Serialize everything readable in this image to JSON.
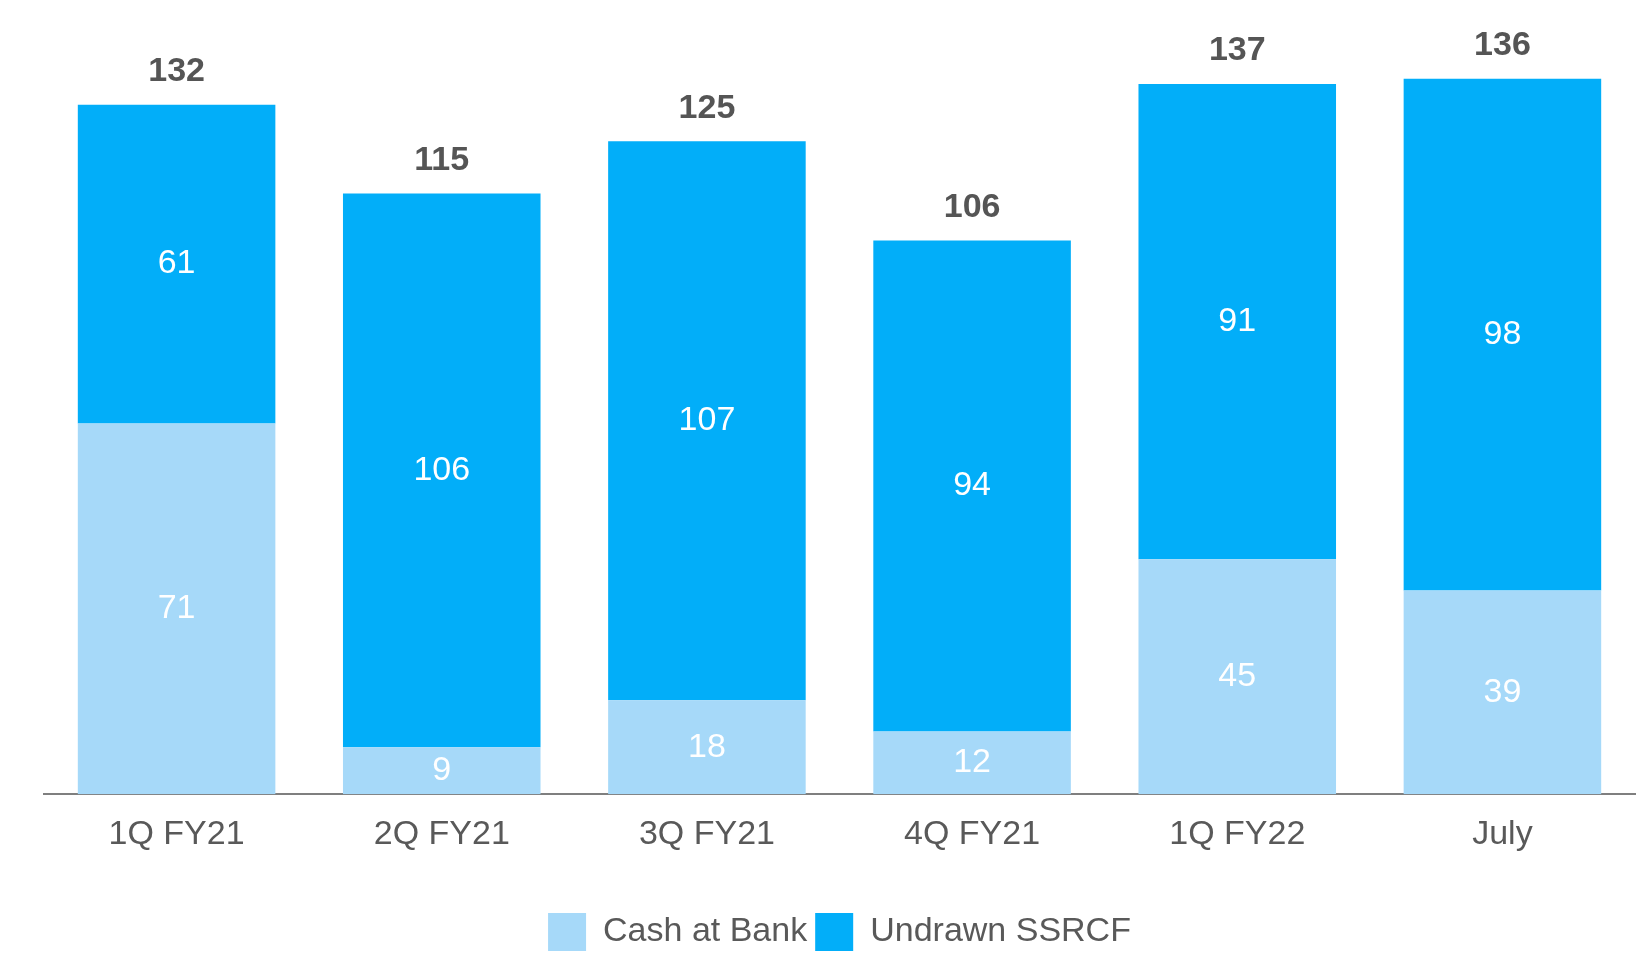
{
  "chart_data": {
    "type": "bar",
    "categories": [
      "1Q FY21",
      "2Q FY21",
      "3Q FY21",
      "4Q FY21",
      "1Q FY22",
      "July"
    ],
    "stacked": true,
    "series": [
      {
        "name": "Cash at Bank",
        "color": "#a6d9f9",
        "values": [
          71,
          9,
          18,
          12,
          45,
          39
        ]
      },
      {
        "name": "Undrawn SSRCF",
        "color": "#02aef9",
        "values": [
          61,
          106,
          107,
          94,
          91,
          98
        ]
      }
    ],
    "totals": [
      "132",
      "115",
      "125",
      "106",
      "137",
      "136"
    ],
    "data_labels": true,
    "legend": "bottom",
    "grid": false
  }
}
